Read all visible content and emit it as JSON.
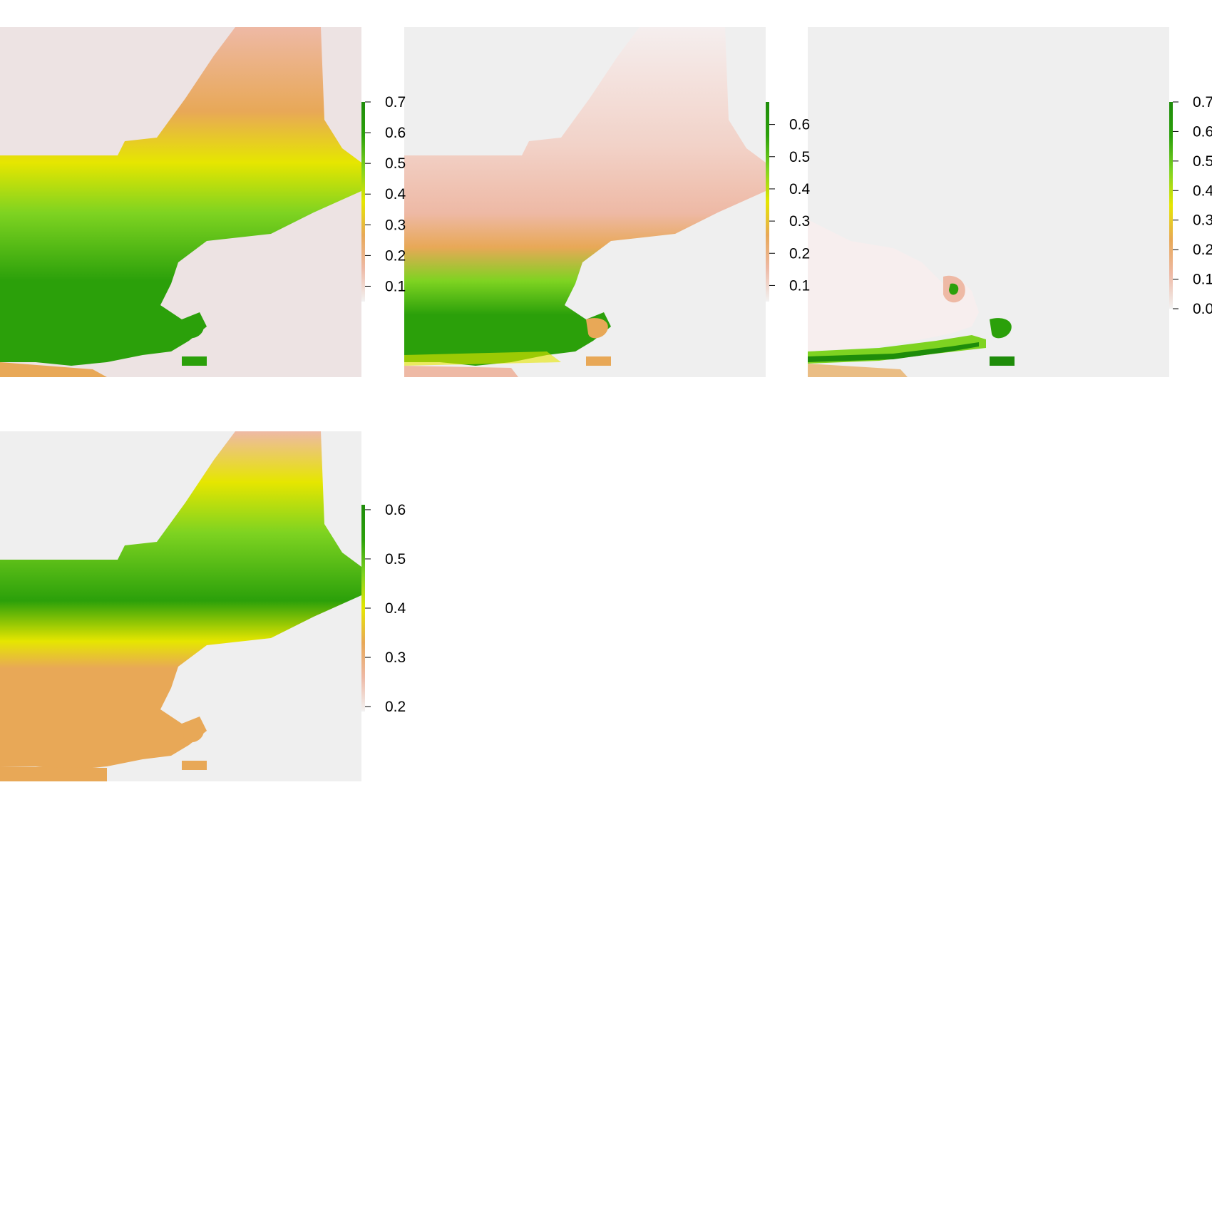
{
  "palette": {
    "background": "#efefef",
    "na_background": "#ebe3e3",
    "low": "#f2f2f2",
    "pinkish": "#eeb9a5",
    "tan": "#e8a857",
    "yellow": "#e6e600",
    "lightgreen": "#7ed321",
    "green": "#2ba00a",
    "darkgreen": "#1e8c0a"
  },
  "panels": [
    {
      "id": "panel-1",
      "legend_ticks": [
        "0.7",
        "0.6",
        "0.5",
        "0.4",
        "0.3",
        "0.2",
        "0.1"
      ],
      "legend_range": [
        0.05,
        0.7
      ],
      "pattern": "south-green"
    },
    {
      "id": "panel-2",
      "legend_ticks": [
        "0.6",
        "0.5",
        "0.4",
        "0.3",
        "0.2",
        "0.1"
      ],
      "legend_range": [
        0.05,
        0.67
      ],
      "pattern": "southwest-green"
    },
    {
      "id": "panel-3",
      "legend_ticks": [
        "0.7",
        "0.6",
        "0.5",
        "0.4",
        "0.3",
        "0.2",
        "0.1",
        "0.0"
      ],
      "legend_range": [
        0.0,
        0.7
      ],
      "pattern": "coast-green"
    },
    {
      "id": "panel-4",
      "legend_ticks": [
        "0.6",
        "0.5",
        "0.4",
        "0.3",
        "0.2"
      ],
      "legend_range": [
        0.19,
        0.61
      ],
      "pattern": "north-green"
    }
  ]
}
